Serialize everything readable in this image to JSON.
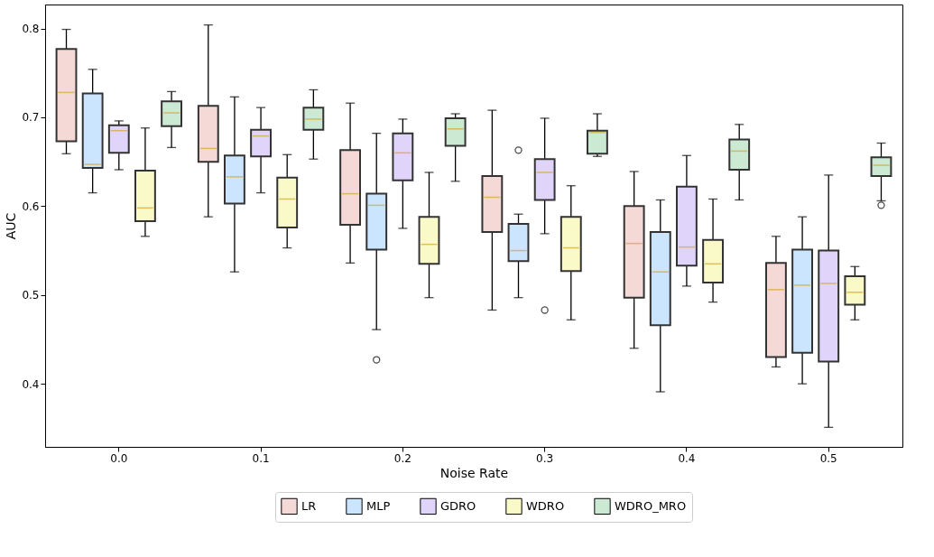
{
  "chart_data": {
    "type": "box",
    "xlabel": "Noise Rate",
    "ylabel": "AUC",
    "categories": [
      "0.0",
      "0.1",
      "0.2",
      "0.3",
      "0.4",
      "0.5"
    ],
    "ylim": [
      0.329,
      0.827
    ],
    "yticks": [
      0.4,
      0.5,
      0.6,
      0.7,
      0.8
    ],
    "grid": false,
    "legend": "bottom",
    "series": [
      {
        "name": "LR",
        "color": "#f5d9d7",
        "boxes": [
          {
            "low": 0.659,
            "q1": 0.673,
            "median": 0.728,
            "q3": 0.777,
            "high": 0.799
          },
          {
            "low": 0.588,
            "q1": 0.65,
            "median": 0.665,
            "q3": 0.713,
            "high": 0.804
          },
          {
            "low": 0.536,
            "q1": 0.579,
            "median": 0.614,
            "q3": 0.663,
            "high": 0.716
          },
          {
            "low": 0.483,
            "q1": 0.571,
            "median": 0.61,
            "q3": 0.634,
            "high": 0.708
          },
          {
            "low": 0.44,
            "q1": 0.497,
            "median": 0.558,
            "q3": 0.6,
            "high": 0.639
          },
          {
            "low": 0.419,
            "q1": 0.43,
            "median": 0.506,
            "q3": 0.536,
            "high": 0.566
          }
        ]
      },
      {
        "name": "MLP",
        "color": "#cce5ff",
        "boxes": [
          {
            "low": 0.615,
            "q1": 0.643,
            "median": 0.647,
            "q3": 0.727,
            "high": 0.754
          },
          {
            "low": 0.526,
            "q1": 0.603,
            "median": 0.633,
            "q3": 0.657,
            "high": 0.723
          },
          {
            "low": 0.461,
            "q1": 0.551,
            "median": 0.601,
            "q3": 0.614,
            "high": 0.682,
            "outliers": [
              0.427
            ]
          },
          {
            "low": 0.497,
            "q1": 0.538,
            "median": 0.55,
            "q3": 0.58,
            "high": 0.591,
            "outliers": [
              0.663
            ]
          },
          {
            "low": 0.391,
            "q1": 0.466,
            "median": 0.526,
            "q3": 0.571,
            "high": 0.607
          },
          {
            "low": 0.4,
            "q1": 0.435,
            "median": 0.511,
            "q3": 0.551,
            "high": 0.588
          }
        ]
      },
      {
        "name": "GDRO",
        "color": "#e0d4fb",
        "boxes": [
          {
            "low": 0.641,
            "q1": 0.66,
            "median": 0.685,
            "q3": 0.691,
            "high": 0.696
          },
          {
            "low": 0.615,
            "q1": 0.656,
            "median": 0.679,
            "q3": 0.686,
            "high": 0.711
          },
          {
            "low": 0.575,
            "q1": 0.629,
            "median": 0.66,
            "q3": 0.682,
            "high": 0.698
          },
          {
            "low": 0.569,
            "q1": 0.607,
            "median": 0.638,
            "q3": 0.653,
            "high": 0.699,
            "outliers": [
              0.483
            ]
          },
          {
            "low": 0.51,
            "q1": 0.533,
            "median": 0.554,
            "q3": 0.622,
            "high": 0.657
          },
          {
            "low": 0.351,
            "q1": 0.425,
            "median": 0.513,
            "q3": 0.55,
            "high": 0.635
          }
        ]
      },
      {
        "name": "WDRO",
        "color": "#fafac8",
        "boxes": [
          {
            "low": 0.566,
            "q1": 0.583,
            "median": 0.598,
            "q3": 0.64,
            "high": 0.688
          },
          {
            "low": 0.553,
            "q1": 0.576,
            "median": 0.608,
            "q3": 0.632,
            "high": 0.658
          },
          {
            "low": 0.497,
            "q1": 0.535,
            "median": 0.557,
            "q3": 0.588,
            "high": 0.638
          },
          {
            "low": 0.472,
            "q1": 0.527,
            "median": 0.553,
            "q3": 0.588,
            "high": 0.623
          },
          {
            "low": 0.492,
            "q1": 0.514,
            "median": 0.535,
            "q3": 0.562,
            "high": 0.608
          },
          {
            "low": 0.472,
            "q1": 0.489,
            "median": 0.503,
            "q3": 0.521,
            "high": 0.532
          }
        ]
      },
      {
        "name": "WDRO_MRO",
        "color": "#cce9d4",
        "boxes": [
          {
            "low": 0.666,
            "q1": 0.69,
            "median": 0.705,
            "q3": 0.718,
            "high": 0.729
          },
          {
            "low": 0.653,
            "q1": 0.686,
            "median": 0.698,
            "q3": 0.711,
            "high": 0.731
          },
          {
            "low": 0.628,
            "q1": 0.668,
            "median": 0.687,
            "q3": 0.699,
            "high": 0.704
          },
          {
            "low": 0.656,
            "q1": 0.659,
            "median": 0.683,
            "q3": 0.685,
            "high": 0.704
          },
          {
            "low": 0.607,
            "q1": 0.641,
            "median": 0.662,
            "q3": 0.675,
            "high": 0.692
          },
          {
            "low": 0.606,
            "q1": 0.634,
            "median": 0.646,
            "q3": 0.655,
            "high": 0.671,
            "outliers": [
              0.601
            ]
          }
        ]
      }
    ]
  }
}
